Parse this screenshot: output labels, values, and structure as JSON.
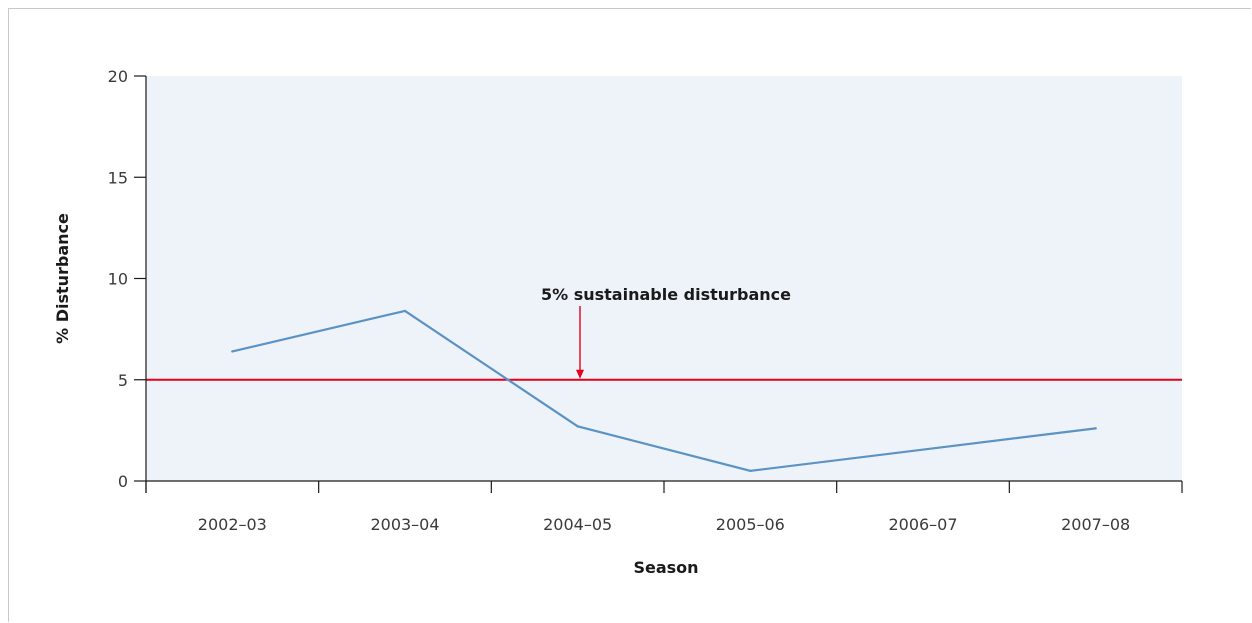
{
  "chart_data": {
    "type": "line",
    "categories": [
      "2002–03",
      "2003–04",
      "2004–05",
      "2005–06",
      "2006–07",
      "2007–08"
    ],
    "series": [
      {
        "values": [
          6.4,
          8.4,
          2.7,
          0.5,
          null,
          2.6
        ],
        "color": "#5b93c5"
      }
    ],
    "xlabel": "Season",
    "ylabel": "% Disturbance",
    "ylim": [
      0,
      20
    ],
    "yticks": [
      0,
      5,
      10,
      15,
      20
    ],
    "reference_line": {
      "value": 5,
      "label": "5% sustainable disturbance",
      "color": "#e3001b"
    },
    "plot_background": "#eef3fa",
    "grid": false
  }
}
